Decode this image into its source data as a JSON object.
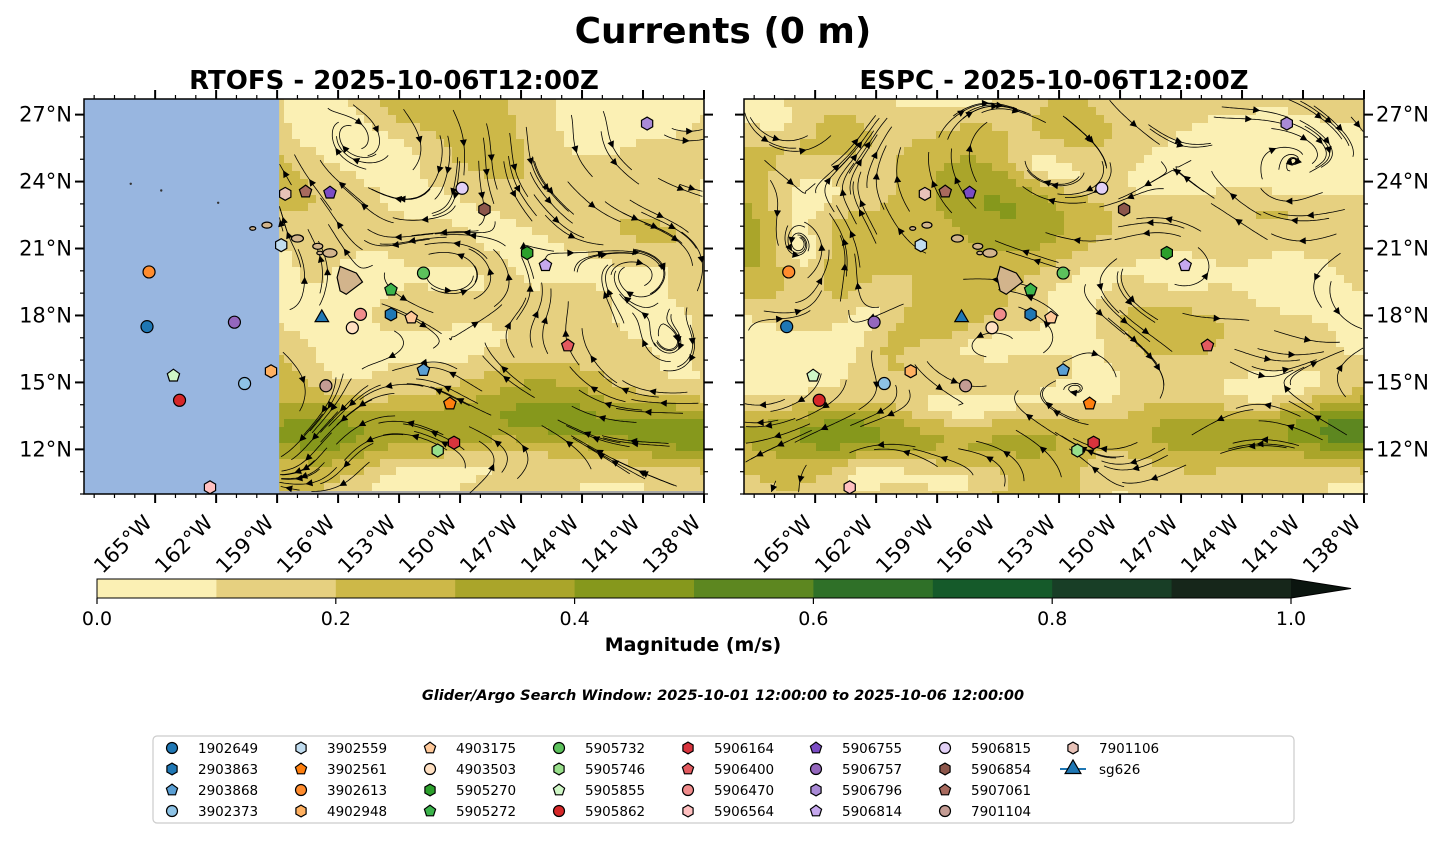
{
  "figure": {
    "title": "Currents (0 m)",
    "search_window": "Glider/Argo Search Window: 2025-10-01 12:00:00 to 2025-10-06 12:00:00"
  },
  "colors": {
    "land_mask": "#98b6e0",
    "hawaii_land": "#d2b48c",
    "colormap": [
      "#fbf0b4",
      "#e6d080",
      "#cdb848",
      "#aaa52a",
      "#86981c",
      "#5d8720",
      "#2f7028",
      "#155a2a",
      "#183e26",
      "#16261a"
    ],
    "overflow": "#0b150f"
  },
  "colorbar": {
    "label": "Magnitude (m/s)",
    "ticks": [
      "0.0",
      "0.2",
      "0.4",
      "0.6",
      "0.8",
      "1.0"
    ],
    "levels": [
      0,
      0.1,
      0.2,
      0.3,
      0.4,
      0.5,
      0.6,
      0.7,
      0.8,
      0.9,
      1.0
    ],
    "extend": "max"
  },
  "legend": {
    "entries": [
      {
        "label": "1902649",
        "marker": "circle",
        "color": "#1f77b4"
      },
      {
        "label": "2903863",
        "marker": "hexagon",
        "color": "#1f77b4"
      },
      {
        "label": "2903868",
        "marker": "pentagon",
        "color": "#5a9fd4"
      },
      {
        "label": "3902373",
        "marker": "circle",
        "color": "#8ec3e6"
      },
      {
        "label": "3902559",
        "marker": "hexagon",
        "color": "#c0dcef"
      },
      {
        "label": "3902561",
        "marker": "pentagon",
        "color": "#ff7f0e"
      },
      {
        "label": "3902613",
        "marker": "circle",
        "color": "#ff8c2e"
      },
      {
        "label": "4902948",
        "marker": "hexagon",
        "color": "#ffb060"
      },
      {
        "label": "4903175",
        "marker": "pentagon",
        "color": "#ffc99a"
      },
      {
        "label": "4903503",
        "marker": "circle",
        "color": "#ffe0c2"
      },
      {
        "label": "5905270",
        "marker": "hexagon",
        "color": "#2ca02c"
      },
      {
        "label": "5905272",
        "marker": "pentagon",
        "color": "#3cb44b"
      },
      {
        "label": "5905732",
        "marker": "circle",
        "color": "#5cc15c"
      },
      {
        "label": "5905746",
        "marker": "hexagon",
        "color": "#98df8a"
      },
      {
        "label": "5905855",
        "marker": "pentagon",
        "color": "#cff7c6"
      },
      {
        "label": "5905862",
        "marker": "circle",
        "color": "#d62728"
      },
      {
        "label": "5906164",
        "marker": "hexagon",
        "color": "#d8343d"
      },
      {
        "label": "5906400",
        "marker": "pentagon",
        "color": "#e35a5f"
      },
      {
        "label": "5906470",
        "marker": "circle",
        "color": "#f08c8c"
      },
      {
        "label": "5906564",
        "marker": "hexagon",
        "color": "#ffc0c0"
      },
      {
        "label": "5906755",
        "marker": "pentagon",
        "color": "#7b4cc4"
      },
      {
        "label": "5906757",
        "marker": "circle",
        "color": "#9467bd"
      },
      {
        "label": "5906796",
        "marker": "hexagon",
        "color": "#a98ad6"
      },
      {
        "label": "5906814",
        "marker": "pentagon",
        "color": "#c6a8ee"
      },
      {
        "label": "5906815",
        "marker": "circle",
        "color": "#e2d0f6"
      },
      {
        "label": "5906854",
        "marker": "hexagon",
        "color": "#8c564b"
      },
      {
        "label": "5907061",
        "marker": "pentagon",
        "color": "#a86a5e"
      },
      {
        "label": "7901104",
        "marker": "circle",
        "color": "#c49c94"
      },
      {
        "label": "7901106",
        "marker": "hexagon",
        "color": "#e8c2b8"
      },
      {
        "label": "sg626",
        "marker": "triangle-line",
        "color": "#1f77b4"
      }
    ]
  },
  "chart_data": [
    {
      "type": "map-contour",
      "title": "RTOFS - 2025-10-06T12:00Z",
      "xlim": [
        -168.5,
        -138
      ],
      "ylim": [
        10,
        27.7
      ],
      "xticks": [
        -165,
        -162,
        -159,
        -156,
        -153,
        -150,
        -147,
        -144,
        -141,
        -138
      ],
      "xtick_labels": [
        "165°W",
        "162°W",
        "159°W",
        "156°W",
        "153°W",
        "150°W",
        "147°W",
        "144°W",
        "141°W",
        "138°W"
      ],
      "yticks": [
        12,
        15,
        18,
        21,
        24,
        27
      ],
      "ytick_labels": [
        "12°N",
        "15°N",
        "18°N",
        "21°N",
        "24°N",
        "27°N"
      ],
      "ytick_side": "left",
      "model_domain_west_lon": -158.9,
      "seed": 11,
      "floats": [
        {
          "id": "1902649",
          "lon": -165.4,
          "lat": 17.5
        },
        {
          "id": "2903863",
          "lon": -153.4,
          "lat": 18.05
        },
        {
          "id": "2903868",
          "lon": -151.8,
          "lat": 15.55
        },
        {
          "id": "3902373",
          "lon": -160.6,
          "lat": 14.95
        },
        {
          "id": "3902559",
          "lon": -158.8,
          "lat": 21.15
        },
        {
          "id": "3902561",
          "lon": -150.5,
          "lat": 14.05
        },
        {
          "id": "3902613",
          "lon": -165.3,
          "lat": 19.95
        },
        {
          "id": "4902948",
          "lon": -159.3,
          "lat": 15.5
        },
        {
          "id": "4903175",
          "lon": -152.4,
          "lat": 17.9
        },
        {
          "id": "4903503",
          "lon": -155.3,
          "lat": 17.45
        },
        {
          "id": "5905270",
          "lon": -146.7,
          "lat": 20.8
        },
        {
          "id": "5905272",
          "lon": -153.4,
          "lat": 19.15
        },
        {
          "id": "5905732",
          "lon": -151.8,
          "lat": 19.9
        },
        {
          "id": "5905746",
          "lon": -151.1,
          "lat": 11.95
        },
        {
          "id": "5905855",
          "lon": -164.1,
          "lat": 15.3
        },
        {
          "id": "5905862",
          "lon": -163.8,
          "lat": 14.2
        },
        {
          "id": "5906164",
          "lon": -150.3,
          "lat": 12.3
        },
        {
          "id": "5906400",
          "lon": -144.7,
          "lat": 16.65
        },
        {
          "id": "5906470",
          "lon": -154.9,
          "lat": 18.05
        },
        {
          "id": "5906564",
          "lon": -162.3,
          "lat": 10.3
        },
        {
          "id": "5906755",
          "lon": -156.4,
          "lat": 23.5
        },
        {
          "id": "5906757",
          "lon": -161.1,
          "lat": 17.7
        },
        {
          "id": "5906796",
          "lon": -140.8,
          "lat": 26.6
        },
        {
          "id": "5906814",
          "lon": -145.8,
          "lat": 20.25
        },
        {
          "id": "5906815",
          "lon": -149.9,
          "lat": 23.7
        },
        {
          "id": "5906854",
          "lon": -148.8,
          "lat": 22.75
        },
        {
          "id": "5907061",
          "lon": -157.6,
          "lat": 23.55
        },
        {
          "id": "7901104",
          "lon": -156.6,
          "lat": 14.85
        },
        {
          "id": "7901106",
          "lon": -158.6,
          "lat": 23.45
        },
        {
          "id": "sg626",
          "lon": -156.8,
          "lat": 17.9
        }
      ]
    },
    {
      "type": "map-contour",
      "title": "ESPC - 2025-10-06T12:00Z",
      "xlim": [
        -168.5,
        -138
      ],
      "ylim": [
        10,
        27.7
      ],
      "xticks": [
        -165,
        -162,
        -159,
        -156,
        -153,
        -150,
        -147,
        -144,
        -141,
        -138
      ],
      "xtick_labels": [
        "165°W",
        "162°W",
        "159°W",
        "156°W",
        "153°W",
        "150°W",
        "147°W",
        "144°W",
        "141°W",
        "138°W"
      ],
      "yticks": [
        12,
        15,
        18,
        21,
        24,
        27
      ],
      "ytick_labels": [
        "12°N",
        "15°N",
        "18°N",
        "21°N",
        "24°N",
        "27°N"
      ],
      "ytick_side": "right",
      "model_domain_west_lon": -168.5,
      "seed": 37,
      "floats": [
        {
          "id": "1902649",
          "lon": -166.4,
          "lat": 17.5
        },
        {
          "id": "2903863",
          "lon": -154.4,
          "lat": 18.05
        },
        {
          "id": "2903868",
          "lon": -152.8,
          "lat": 15.55
        },
        {
          "id": "3902373",
          "lon": -161.6,
          "lat": 14.95
        },
        {
          "id": "3902559",
          "lon": -159.8,
          "lat": 21.15
        },
        {
          "id": "3902561",
          "lon": -151.5,
          "lat": 14.05
        },
        {
          "id": "3902613",
          "lon": -166.3,
          "lat": 19.95
        },
        {
          "id": "4902948",
          "lon": -160.3,
          "lat": 15.5
        },
        {
          "id": "4903175",
          "lon": -153.4,
          "lat": 17.9
        },
        {
          "id": "4903503",
          "lon": -156.3,
          "lat": 17.45
        },
        {
          "id": "5905270",
          "lon": -147.7,
          "lat": 20.8
        },
        {
          "id": "5905272",
          "lon": -154.4,
          "lat": 19.15
        },
        {
          "id": "5905732",
          "lon": -152.8,
          "lat": 19.9
        },
        {
          "id": "5905746",
          "lon": -152.1,
          "lat": 11.95
        },
        {
          "id": "5905855",
          "lon": -165.1,
          "lat": 15.3
        },
        {
          "id": "5905862",
          "lon": -164.8,
          "lat": 14.2
        },
        {
          "id": "5906164",
          "lon": -151.3,
          "lat": 12.3
        },
        {
          "id": "5906400",
          "lon": -145.7,
          "lat": 16.65
        },
        {
          "id": "5906470",
          "lon": -155.9,
          "lat": 18.05
        },
        {
          "id": "5906564",
          "lon": -163.3,
          "lat": 10.3
        },
        {
          "id": "5906755",
          "lon": -157.4,
          "lat": 23.5
        },
        {
          "id": "5906757",
          "lon": -162.1,
          "lat": 17.7
        },
        {
          "id": "5906796",
          "lon": -141.8,
          "lat": 26.6
        },
        {
          "id": "5906814",
          "lon": -146.8,
          "lat": 20.25
        },
        {
          "id": "5906815",
          "lon": -150.9,
          "lat": 23.7
        },
        {
          "id": "5906854",
          "lon": -149.8,
          "lat": 22.75
        },
        {
          "id": "5907061",
          "lon": -158.6,
          "lat": 23.55
        },
        {
          "id": "7901104",
          "lon": -157.6,
          "lat": 14.85
        },
        {
          "id": "7901106",
          "lon": -159.6,
          "lat": 23.45
        },
        {
          "id": "sg626",
          "lon": -157.8,
          "lat": 17.9
        }
      ]
    }
  ]
}
